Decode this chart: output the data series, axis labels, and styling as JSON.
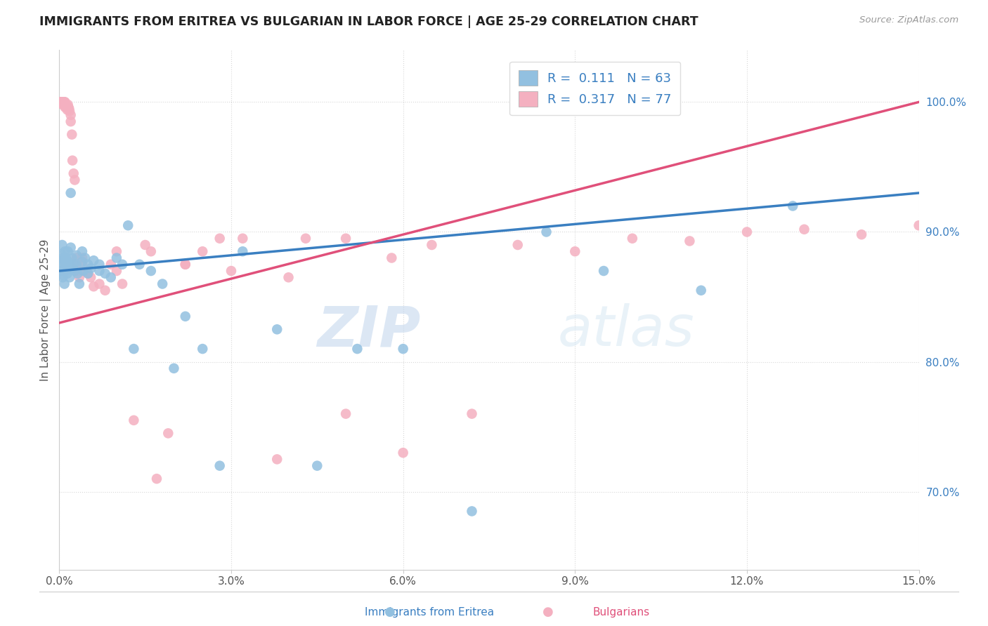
{
  "title": "IMMIGRANTS FROM ERITREA VS BULGARIAN IN LABOR FORCE | AGE 25-29 CORRELATION CHART",
  "source": "Source: ZipAtlas.com",
  "ylabel": "In Labor Force | Age 25-29",
  "xlim": [
    0.0,
    0.15
  ],
  "ylim": [
    0.64,
    1.04
  ],
  "blue_color": "#92c0e0",
  "pink_color": "#f4b0c0",
  "blue_line_color": "#3a7fc1",
  "pink_line_color": "#e0507a",
  "R_blue": 0.111,
  "N_blue": 63,
  "R_pink": 0.317,
  "N_pink": 77,
  "watermark_zip": "ZIP",
  "watermark_atlas": "atlas",
  "series1_label": "Immigrants from Eritrea",
  "series2_label": "Bulgarians",
  "blue_scatter_x": [
    0.0002,
    0.0003,
    0.0004,
    0.0004,
    0.0005,
    0.0006,
    0.0006,
    0.0007,
    0.0008,
    0.0009,
    0.001,
    0.001,
    0.001,
    0.0012,
    0.0013,
    0.0014,
    0.0015,
    0.0016,
    0.0017,
    0.0018,
    0.002,
    0.002,
    0.0022,
    0.0023,
    0.0025,
    0.0027,
    0.003,
    0.003,
    0.0032,
    0.0035,
    0.004,
    0.004,
    0.0042,
    0.0045,
    0.005,
    0.005,
    0.0055,
    0.006,
    0.007,
    0.007,
    0.008,
    0.009,
    0.01,
    0.011,
    0.012,
    0.013,
    0.014,
    0.016,
    0.018,
    0.02,
    0.022,
    0.025,
    0.028,
    0.032,
    0.038,
    0.045,
    0.052,
    0.06,
    0.072,
    0.085,
    0.095,
    0.112,
    0.128
  ],
  "blue_scatter_y": [
    0.87,
    0.883,
    0.875,
    0.867,
    0.89,
    0.878,
    0.865,
    0.88,
    0.872,
    0.86,
    0.885,
    0.878,
    0.87,
    0.88,
    0.875,
    0.868,
    0.885,
    0.877,
    0.872,
    0.865,
    0.93,
    0.888,
    0.88,
    0.872,
    0.875,
    0.87,
    0.882,
    0.875,
    0.868,
    0.86,
    0.885,
    0.877,
    0.87,
    0.88,
    0.875,
    0.868,
    0.872,
    0.878,
    0.875,
    0.87,
    0.868,
    0.865,
    0.88,
    0.875,
    0.905,
    0.81,
    0.875,
    0.87,
    0.86,
    0.795,
    0.835,
    0.81,
    0.72,
    0.885,
    0.825,
    0.72,
    0.81,
    0.81,
    0.685,
    0.9,
    0.87,
    0.855,
    0.92
  ],
  "pink_scatter_x": [
    0.0002,
    0.0003,
    0.0003,
    0.0004,
    0.0004,
    0.0005,
    0.0005,
    0.0005,
    0.0006,
    0.0006,
    0.0006,
    0.0007,
    0.0007,
    0.0008,
    0.0008,
    0.0009,
    0.0009,
    0.001,
    0.001,
    0.001,
    0.0012,
    0.0013,
    0.0014,
    0.0015,
    0.0016,
    0.0017,
    0.0018,
    0.002,
    0.002,
    0.0022,
    0.0023,
    0.0025,
    0.0027,
    0.003,
    0.003,
    0.0032,
    0.0035,
    0.004,
    0.004,
    0.0045,
    0.005,
    0.0055,
    0.006,
    0.007,
    0.008,
    0.009,
    0.01,
    0.011,
    0.013,
    0.015,
    0.017,
    0.019,
    0.022,
    0.025,
    0.028,
    0.032,
    0.038,
    0.043,
    0.05,
    0.058,
    0.065,
    0.072,
    0.08,
    0.09,
    0.1,
    0.11,
    0.12,
    0.13,
    0.14,
    0.15,
    0.01,
    0.016,
    0.022,
    0.03,
    0.04,
    0.05,
    0.06
  ],
  "pink_scatter_y": [
    1.0,
    1.0,
    1.0,
    1.0,
    1.0,
    1.0,
    1.0,
    1.0,
    1.0,
    1.0,
    0.998,
    1.0,
    0.998,
    1.0,
    0.998,
    1.0,
    0.998,
    1.0,
    0.998,
    0.996,
    0.998,
    0.996,
    0.994,
    0.998,
    0.996,
    0.995,
    0.993,
    0.99,
    0.985,
    0.975,
    0.955,
    0.945,
    0.94,
    0.88,
    0.875,
    0.87,
    0.865,
    0.88,
    0.875,
    0.87,
    0.868,
    0.865,
    0.858,
    0.86,
    0.855,
    0.875,
    0.87,
    0.86,
    0.755,
    0.89,
    0.71,
    0.745,
    0.875,
    0.885,
    0.895,
    0.895,
    0.725,
    0.895,
    0.895,
    0.88,
    0.89,
    0.76,
    0.89,
    0.885,
    0.895,
    0.893,
    0.9,
    0.902,
    0.898,
    0.905,
    0.885,
    0.885,
    0.875,
    0.87,
    0.865,
    0.76,
    0.73
  ]
}
